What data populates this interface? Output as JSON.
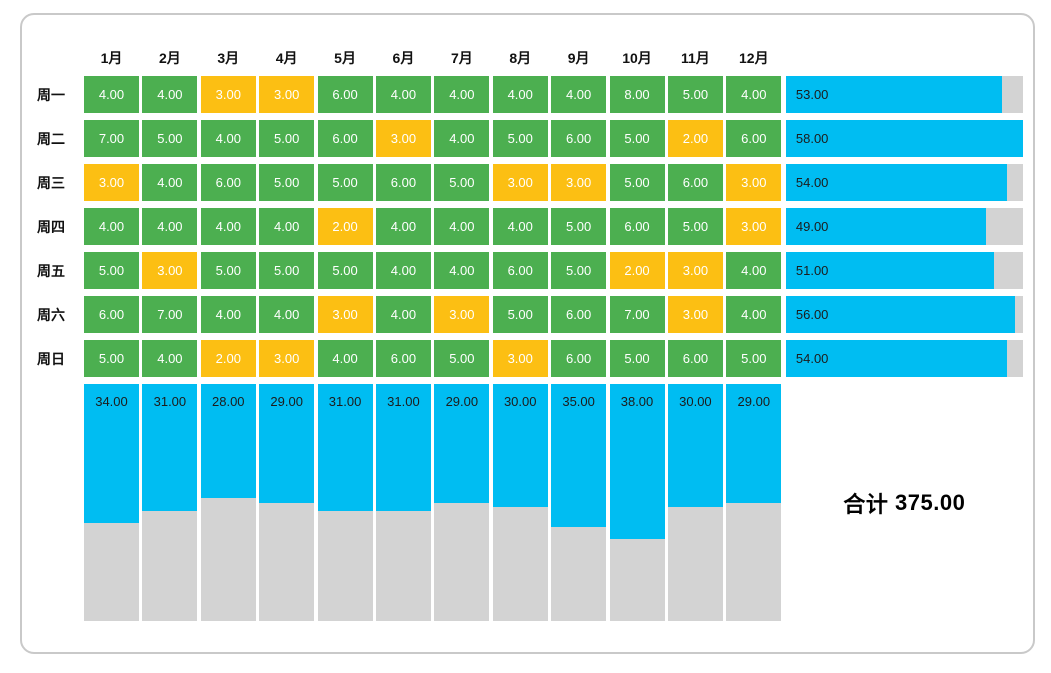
{
  "chart_data": {
    "type": "heatmap",
    "title": "",
    "columns": [
      "1月",
      "2月",
      "3月",
      "4月",
      "5月",
      "6月",
      "7月",
      "8月",
      "9月",
      "10月",
      "11月",
      "12月"
    ],
    "rows": [
      "周一",
      "周二",
      "周三",
      "周四",
      "周五",
      "周六",
      "周日"
    ],
    "values": [
      [
        4,
        4,
        3,
        3,
        6,
        4,
        4,
        4,
        4,
        8,
        5,
        4
      ],
      [
        7,
        5,
        4,
        5,
        6,
        3,
        4,
        5,
        6,
        5,
        2,
        6
      ],
      [
        3,
        4,
        6,
        5,
        5,
        6,
        5,
        3,
        3,
        5,
        6,
        3
      ],
      [
        4,
        4,
        4,
        4,
        2,
        4,
        4,
        4,
        5,
        6,
        5,
        3
      ],
      [
        5,
        3,
        5,
        5,
        5,
        4,
        4,
        6,
        5,
        2,
        3,
        4
      ],
      [
        6,
        7,
        4,
        4,
        3,
        4,
        3,
        5,
        6,
        7,
        3,
        4
      ],
      [
        5,
        4,
        2,
        3,
        4,
        6,
        5,
        3,
        6,
        5,
        6,
        5
      ]
    ],
    "row_totals": [
      53,
      58,
      54,
      49,
      51,
      56,
      54
    ],
    "column_totals": [
      34,
      31,
      28,
      29,
      31,
      31,
      29,
      30,
      35,
      38,
      30,
      29
    ],
    "grand_total_label": "合计",
    "grand_total_value": "375.00",
    "value_decimals": 2,
    "scale_max": 58,
    "low_value_threshold": 3,
    "colors": {
      "cell_green": "#4caf50",
      "cell_amber": "#fcbf13",
      "bar_cyan": "#00bdf2",
      "bar_track_gray": "#d3d3d3",
      "cell_text": "#ffffff",
      "label_text": "#111111"
    },
    "legend": "none",
    "grid": "off"
  }
}
